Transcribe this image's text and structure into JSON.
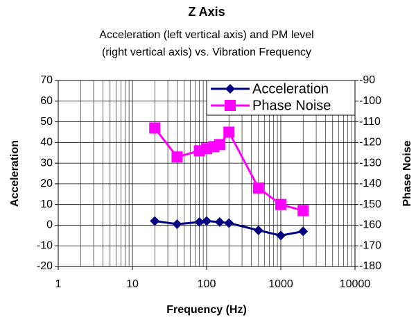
{
  "chart_data": {
    "type": "line",
    "title": "Z Axis",
    "subtitle": [
      "Acceleration (left vertical axis) and PM level",
      "(right vertical axis) vs. Vibration Frequency"
    ],
    "x_label": "Frequency (Hz)",
    "y_label": "Acceleration",
    "y2_label": "Phase Noise",
    "xscale": "log",
    "xlim": [
      1,
      10000
    ],
    "xticks": [
      1,
      10,
      100,
      1000,
      10000
    ],
    "ylim": [
      -20,
      70
    ],
    "yticks": [
      -20,
      -10,
      0,
      10,
      20,
      30,
      40,
      50,
      60,
      70
    ],
    "y2lim": [
      -180,
      -90
    ],
    "y2ticks": [
      -180,
      -170,
      -160,
      -150,
      -140,
      -130,
      -120,
      -110,
      -100,
      -90
    ],
    "grid": true,
    "minor_grid": true,
    "legend": "upper right",
    "series": [
      {
        "name": "Acceleration",
        "color": "#000080",
        "marker": "diamond",
        "x": [
          20,
          40,
          80,
          100,
          150,
          200,
          500,
          1000,
          2000
        ],
        "values": [
          2,
          0.5,
          1.5,
          2,
          1.5,
          1,
          -2.5,
          -5,
          -3
        ]
      },
      {
        "name": "Phase Noise",
        "color": "#ff00ff",
        "marker": "square",
        "axis": "y2",
        "x": [
          20,
          40,
          80,
          100,
          125,
          150,
          200,
          500,
          1000,
          2000
        ],
        "values": [
          -113,
          -127,
          -124,
          -123,
          -122,
          -121,
          -115,
          -142,
          -150,
          -153
        ]
      }
    ]
  }
}
